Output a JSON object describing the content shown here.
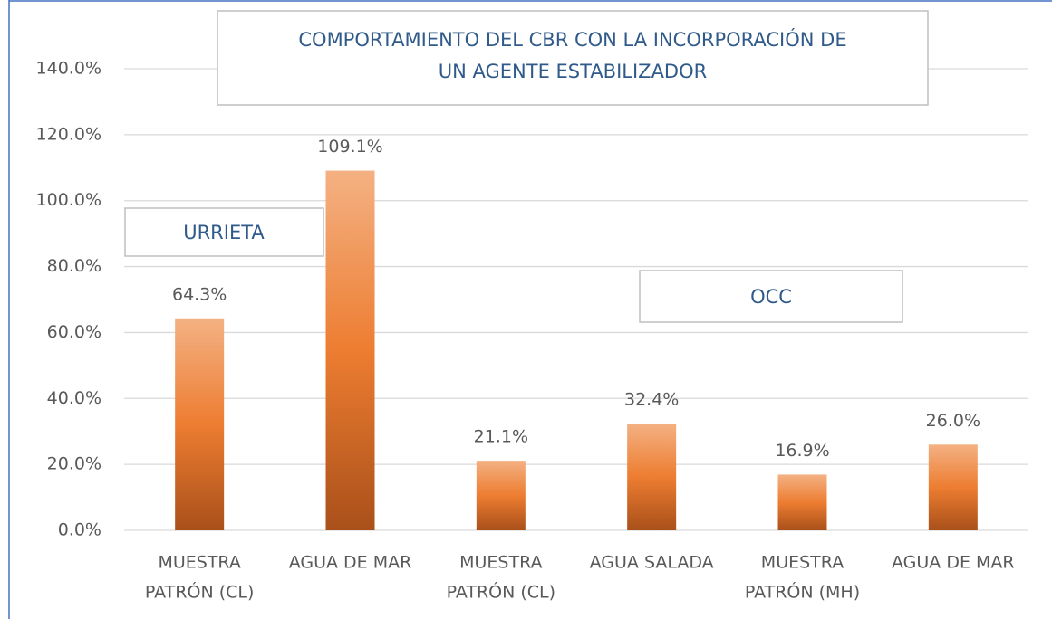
{
  "chart_data": {
    "type": "bar",
    "title": [
      "COMPORTAMIENTO DEL CBR CON LA INCORPORACIÓN DE",
      "UN AGENTE ESTABILIZADOR"
    ],
    "annotations": [
      "URRIETA",
      "OCC"
    ],
    "categories": [
      [
        "MUESTRA",
        "PATRÓN (CL)"
      ],
      [
        "AGUA DE MAR"
      ],
      [
        "MUESTRA",
        "PATRÓN (CL)"
      ],
      [
        "AGUA SALADA"
      ],
      [
        "MUESTRA",
        "PATRÓN (MH)"
      ],
      [
        "AGUA DE MAR"
      ]
    ],
    "values": [
      64.3,
      109.1,
      21.1,
      32.4,
      16.9,
      26.0
    ],
    "value_labels": [
      "64.3%",
      "109.1%",
      "21.1%",
      "32.4%",
      "16.9%",
      "26.0%"
    ],
    "color": "#ed7d31",
    "ylim": [
      0,
      140
    ],
    "yticks": [
      {
        "value": 0,
        "label": "0.0%"
      },
      {
        "value": 20,
        "label": "20.0%"
      },
      {
        "value": 40,
        "label": "40.0%"
      },
      {
        "value": 60,
        "label": "60.0%"
      },
      {
        "value": 80,
        "label": "80.0%"
      },
      {
        "value": 100,
        "label": "100.0%"
      },
      {
        "value": 120,
        "label": "120.0%"
      },
      {
        "value": 140,
        "label": "140.0%"
      }
    ],
    "grid": true
  }
}
